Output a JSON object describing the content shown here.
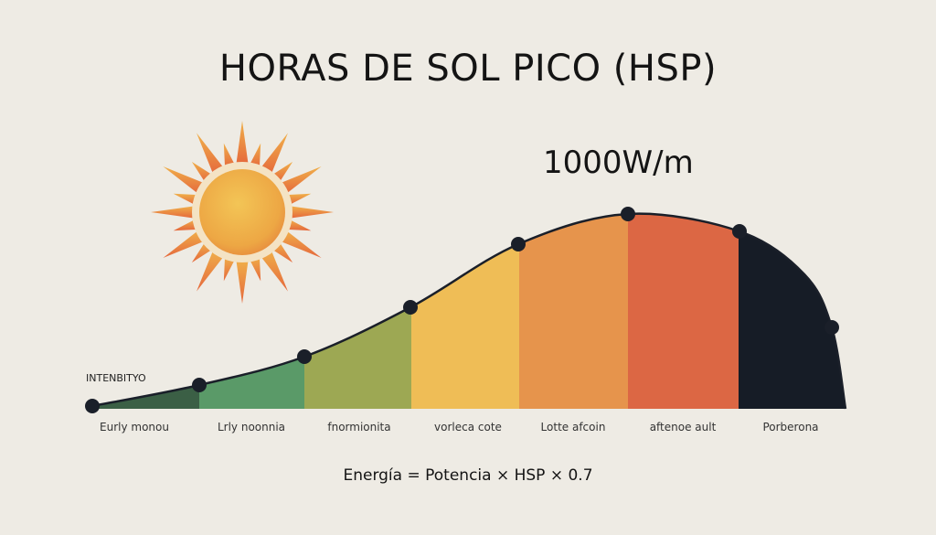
{
  "title": "HORAS DE SOL PICO (HSP)",
  "peak_label": "1000W/m",
  "y_label": "INTENBITYO",
  "segments": [
    {
      "label": "Eurly monou",
      "color": "#3b5f45"
    },
    {
      "label": "Lrly noonnia",
      "color": "#5a9a68"
    },
    {
      "label": "fnormionita",
      "color": "#9da853"
    },
    {
      "label": "vorleca cote",
      "color": "#efbd56"
    },
    {
      "label": "Lotte afcoin",
      "color": "#e6944c"
    },
    {
      "label": "aftenoe ault",
      "color": "#dc6744"
    },
    {
      "label": "Porberona",
      "color": "#161c26"
    }
  ],
  "formula": "Energía = Potencia × HSP × 0.7",
  "icons": {
    "sun": "sun-icon"
  },
  "colors": {
    "background": "#eeebe4",
    "line": "#1a1f29",
    "sun_core": "#f0b34a",
    "sun_ray_top": "#f0b04a",
    "sun_ray_bottom": "#e5683c"
  }
}
